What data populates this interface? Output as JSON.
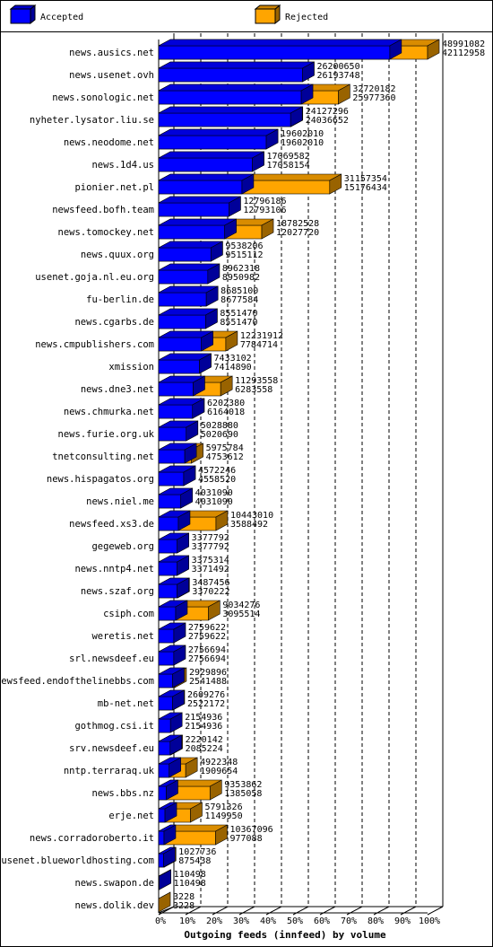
{
  "chart_data": {
    "type": "bar",
    "orientation": "horizontal",
    "title": "Outgoing feeds (innfeed) by volume",
    "categories": [
      "news.ausics.net",
      "news.usenet.ovh",
      "news.sonologic.net",
      "nyheter.lysator.liu.se",
      "news.neodome.net",
      "news.1d4.us",
      "pionier.net.pl",
      "newsfeed.bofh.team",
      "news.tomockey.net",
      "news.quux.org",
      "usenet.goja.nl.eu.org",
      "fu-berlin.de",
      "news.cgarbs.de",
      "news.cmpublishers.com",
      "xmission",
      "news.dne3.net",
      "news.chmurka.net",
      "news.furie.org.uk",
      "tnetconsulting.net",
      "news.hispagatos.org",
      "news.niel.me",
      "newsfeed.xs3.de",
      "gegeweb.org",
      "news.nntp4.net",
      "news.szaf.org",
      "csiph.com",
      "weretis.net",
      "srl.newsdeef.eu",
      "newsfeed.endofthelinebbs.com",
      "mb-net.net",
      "gothmog.csi.it",
      "srv.newsdeef.eu",
      "nntp.terraraq.uk",
      "news.bbs.nz",
      "erje.net",
      "news.corradoroberto.it",
      "usenet.blueworldhosting.com",
      "news.swapon.de",
      "news.dolik.dev"
    ],
    "series": [
      {
        "name": "Accepted",
        "color": "#0000ff",
        "values": [
          42112958,
          26193748,
          25977360,
          24036652,
          19602010,
          17058154,
          15176434,
          12793106,
          12027720,
          9515112,
          8950982,
          8677584,
          8551470,
          7784714,
          7414890,
          6283558,
          6164018,
          5020690,
          4753612,
          4558520,
          4031090,
          3588492,
          3377792,
          3371492,
          3370222,
          3095514,
          2759622,
          2756694,
          2541488,
          2522172,
          2154936,
          2085224,
          1909654,
          1385058,
          1149950,
          977088,
          875438,
          110498,
          3228
        ]
      },
      {
        "name": "Rejected",
        "color": "#ffa500",
        "values": [
          48991082,
          26200650,
          32720182,
          24127296,
          19602010,
          17069582,
          31157354,
          12796186,
          18782528,
          9538206,
          8962318,
          8685100,
          8551470,
          12231912,
          7433102,
          11293558,
          6202380,
          5028880,
          5975784,
          4572246,
          4031090,
          10443010,
          3377792,
          3375314,
          3487456,
          9034276,
          2759622,
          2756694,
          2929896,
          2609276,
          2154936,
          2220142,
          4922348,
          9353862,
          5791326,
          10367096,
          1027736,
          110498,
          3228
        ]
      }
    ],
    "xlim": [
      0,
      48991082
    ],
    "xticks": [
      {
        "value": 0,
        "label": "0%"
      },
      {
        "value": 4899108.2,
        "label": "10%"
      },
      {
        "value": 9798216.4,
        "label": "20%"
      },
      {
        "value": 14697324.6,
        "label": "30%"
      },
      {
        "value": 19596432.8,
        "label": "40%"
      },
      {
        "value": 24495541,
        "label": "50%"
      },
      {
        "value": 29394649.2,
        "label": "60%"
      },
      {
        "value": 34293757.4,
        "label": "70%"
      },
      {
        "value": 39192865.6,
        "label": "80%"
      },
      {
        "value": 44091973.8,
        "label": "90%"
      },
      {
        "value": 48991082,
        "label": "100%"
      }
    ],
    "grid": true
  }
}
